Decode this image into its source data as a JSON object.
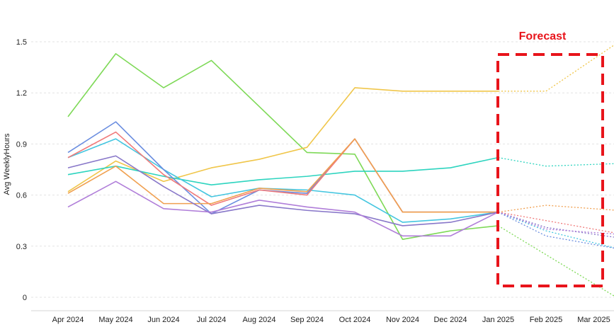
{
  "chart_data": {
    "type": "line",
    "xlabel": "",
    "ylabel": "Avg WeeklyHours",
    "ylim": [
      0,
      1.5
    ],
    "yticks": [
      "0",
      "0.3",
      "0.6",
      "0.9",
      "1.2",
      "1.5"
    ],
    "categories": [
      "Apr 2024",
      "May 2024",
      "Jun 2024",
      "Jul 2024",
      "Aug 2024",
      "Sep 2024",
      "Oct 2024",
      "Nov 2024",
      "Dec 2024",
      "Jan 2025",
      "Feb 2025",
      "Mar 2025"
    ],
    "forecast_start_index": 9,
    "grid": true,
    "annotation": {
      "text": "Forecast",
      "color": "#e8141b"
    },
    "series": [
      {
        "color": "#7ed957",
        "values": [
          1.06,
          1.43,
          1.23,
          1.39,
          1.12,
          0.85,
          0.84,
          0.34,
          0.39,
          0.42,
          0.25,
          0.08
        ]
      },
      {
        "color": "#f0c64a",
        "values": [
          0.62,
          0.8,
          0.68,
          0.76,
          0.81,
          0.88,
          1.23,
          1.21,
          1.21,
          1.21,
          1.21,
          1.4
        ]
      },
      {
        "color": "#2dd4bf",
        "values": [
          0.72,
          0.77,
          0.71,
          0.66,
          0.69,
          0.71,
          0.74,
          0.74,
          0.76,
          0.82,
          0.77,
          0.78
        ]
      },
      {
        "color": "#45c6e0",
        "values": [
          0.82,
          0.93,
          0.75,
          0.59,
          0.64,
          0.63,
          0.6,
          0.44,
          0.46,
          0.5,
          0.39,
          0.32
        ]
      },
      {
        "color": "#6b8ee0",
        "values": [
          0.85,
          1.03,
          0.75,
          0.49,
          0.63,
          0.61,
          0.93,
          0.5,
          0.5,
          0.5,
          0.36,
          0.31
        ]
      },
      {
        "color": "#f07a7a",
        "values": [
          0.82,
          0.97,
          0.72,
          0.54,
          0.63,
          0.6,
          0.93,
          0.5,
          0.5,
          0.5,
          0.45,
          0.4
        ]
      },
      {
        "color": "#f0a050",
        "values": [
          0.61,
          0.77,
          0.55,
          0.55,
          0.64,
          0.62,
          0.93,
          0.5,
          0.5,
          0.5,
          0.54,
          0.52
        ]
      },
      {
        "color": "#8877c9",
        "values": [
          0.76,
          0.83,
          0.65,
          0.49,
          0.54,
          0.51,
          0.49,
          0.42,
          0.44,
          0.5,
          0.41,
          0.37
        ]
      },
      {
        "color": "#b07ed9",
        "values": [
          0.53,
          0.68,
          0.52,
          0.5,
          0.57,
          0.53,
          0.5,
          0.36,
          0.36,
          0.5,
          0.4,
          0.38
        ]
      }
    ]
  }
}
